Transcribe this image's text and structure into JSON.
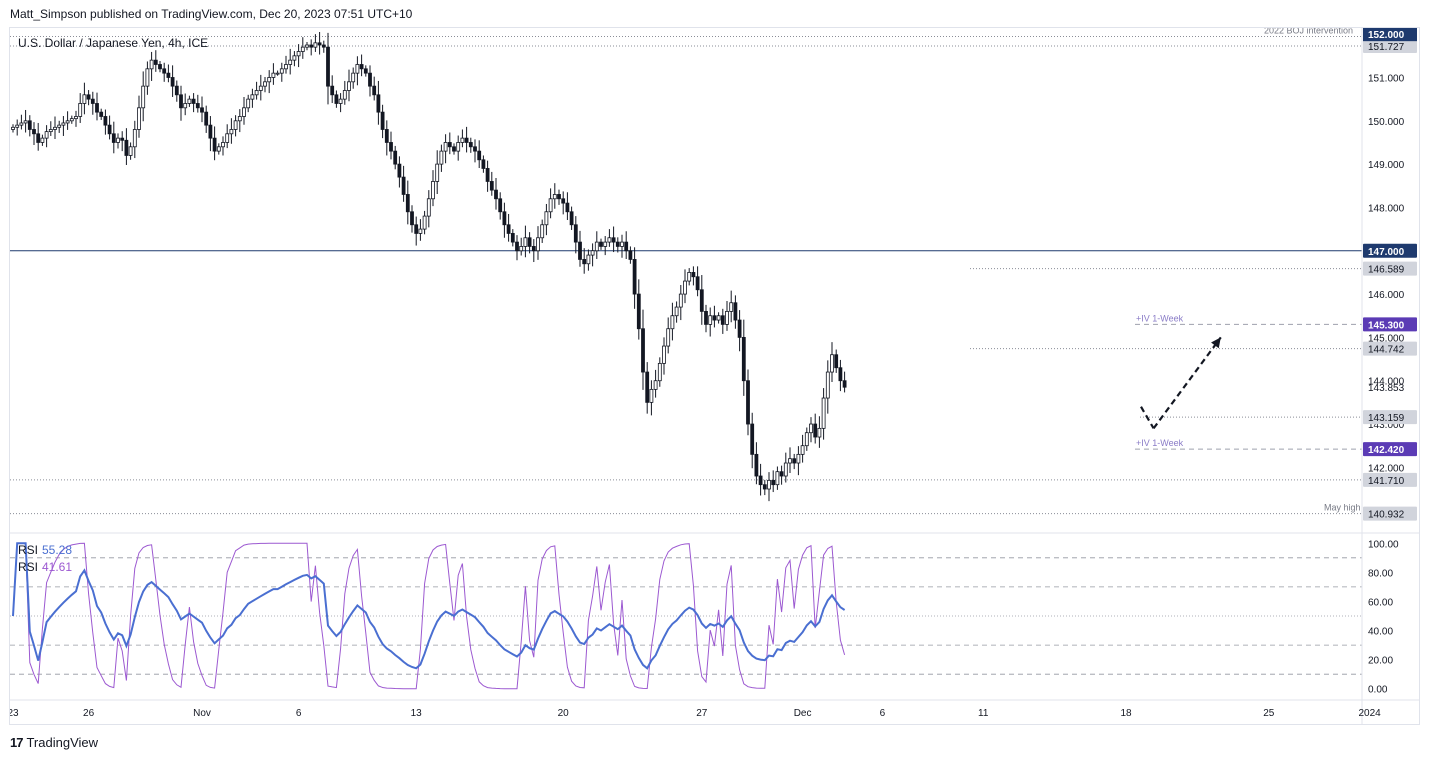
{
  "header": {
    "publisher": "Matt_Simpson published on TradingView.com, Dec 20, 2023 07:51 UTC+10"
  },
  "footer": {
    "logo_text": "17",
    "brand": "TradingView"
  },
  "colors": {
    "candle_body": "#131722",
    "price_line": "#1e3a6e",
    "rsi_fast": "#9c59d1",
    "rsi_slow": "#4a6fd1",
    "label_dark": "#1e3a6e",
    "label_purple": "#5b3bb5",
    "label_gray": "#787b86",
    "axis_text": "#131722"
  },
  "chart_data": [
    {
      "type": "candlestick",
      "title": "U.S. Dollar / Japanese Yen, 4h, ICE",
      "ylim": [
        140.6,
        152.05
      ],
      "y_ticks": [
        "152.000",
        "151.000",
        "150.000",
        "149.000",
        "148.000",
        "147.000",
        "146.000",
        "145.000",
        "144.000",
        "143.000",
        "142.000"
      ],
      "x_tick_labels": [
        "23",
        "26",
        "Nov",
        "6",
        "13",
        "20",
        "27",
        "Dec",
        "6",
        "11",
        "18",
        "25",
        "2024"
      ],
      "x_tick_bar_index": [
        0,
        18,
        45,
        68,
        96,
        131,
        164,
        188,
        207,
        231,
        265,
        299,
        323
      ],
      "levels": [
        {
          "price": 151.945,
          "label": "151.945",
          "style": "dotted",
          "annotation": "2022 BOJ intervention"
        },
        {
          "price": 151.727,
          "label": "151.727",
          "style": "dotted",
          "annotation": ""
        },
        {
          "price": 147.0,
          "label": "147.000",
          "style": "solid",
          "annotation": ""
        },
        {
          "price": 146.589,
          "label": "146.589",
          "style": "dotted",
          "annotation": ""
        },
        {
          "price": 145.3,
          "label": "145.300",
          "style": "dashed",
          "annotation": "+IV 1-Week"
        },
        {
          "price": 144.742,
          "label": "144.742",
          "style": "dotted",
          "annotation": ""
        },
        {
          "price": 143.159,
          "label": "143.159",
          "style": "dotted",
          "annotation": ""
        },
        {
          "price": 142.42,
          "label": "142.420",
          "style": "dashed",
          "annotation": "+IV 1-Week"
        },
        {
          "price": 141.71,
          "label": "141.710",
          "style": "dotted",
          "annotation": ""
        },
        {
          "price": 140.932,
          "label": "140.932",
          "style": "dotted",
          "annotation": "May high"
        }
      ],
      "last_price": "143.853",
      "top_label": "152.000",
      "closes": [
        149.85,
        149.9,
        149.95,
        150.0,
        149.8,
        149.7,
        149.5,
        149.6,
        149.75,
        149.8,
        149.85,
        149.9,
        149.95,
        150.0,
        150.05,
        150.1,
        150.4,
        150.6,
        150.5,
        150.4,
        150.2,
        150.1,
        149.9,
        149.7,
        149.5,
        149.6,
        149.55,
        149.2,
        149.4,
        149.8,
        150.3,
        150.8,
        151.2,
        151.4,
        151.3,
        151.2,
        151.1,
        151.0,
        150.8,
        150.6,
        150.3,
        150.4,
        150.5,
        150.4,
        150.3,
        150.2,
        149.9,
        149.6,
        149.3,
        149.4,
        149.5,
        149.7,
        149.8,
        150.0,
        150.1,
        150.3,
        150.5,
        150.6,
        150.7,
        150.8,
        150.9,
        151.0,
        151.1,
        151.1,
        151.2,
        151.3,
        151.4,
        151.5,
        151.6,
        151.7,
        151.75,
        151.7,
        151.8,
        151.75,
        151.7,
        150.8,
        150.6,
        150.4,
        150.5,
        150.7,
        150.9,
        151.1,
        151.3,
        151.2,
        151.1,
        150.8,
        150.6,
        150.2,
        149.8,
        149.5,
        149.3,
        149.0,
        148.7,
        148.3,
        147.9,
        147.6,
        147.4,
        147.5,
        147.8,
        148.2,
        148.6,
        149.0,
        149.3,
        149.5,
        149.4,
        149.3,
        149.5,
        149.6,
        149.5,
        149.4,
        149.3,
        149.1,
        148.9,
        148.6,
        148.4,
        148.2,
        147.9,
        147.6,
        147.4,
        147.2,
        147.0,
        147.1,
        147.3,
        147.1,
        147.0,
        147.3,
        147.6,
        147.9,
        148.2,
        148.3,
        148.2,
        148.1,
        147.9,
        147.6,
        147.2,
        146.8,
        146.7,
        146.9,
        147.0,
        147.2,
        147.1,
        147.2,
        147.3,
        147.2,
        147.1,
        147.2,
        147.0,
        146.8,
        146.0,
        145.2,
        144.2,
        143.5,
        143.8,
        144.0,
        144.4,
        144.8,
        145.2,
        145.5,
        145.7,
        146.0,
        146.3,
        146.5,
        146.4,
        146.1,
        145.6,
        145.3,
        145.5,
        145.4,
        145.5,
        145.3,
        145.6,
        145.8,
        145.4,
        145.0,
        144.0,
        143.0,
        142.3,
        141.8,
        141.6,
        141.5,
        141.7,
        141.6,
        141.9,
        141.8,
        142.1,
        142.2,
        142.1,
        142.3,
        142.5,
        142.8,
        143.0,
        142.7,
        142.9,
        143.6,
        144.2,
        144.6,
        144.3,
        144.0,
        143.85
      ],
      "annotation_arrow": {
        "points": [
          [
            140,
            143.4
          ],
          [
            143,
            142.9
          ],
          [
            159,
            145.0
          ]
        ],
        "style": "dashed",
        "head": "end"
      }
    },
    {
      "type": "line",
      "title": "RSI",
      "ylim": [
        -5,
        105
      ],
      "y_ticks": [
        "100.00",
        "80.00",
        "60.00",
        "40.00",
        "20.00",
        "0.00"
      ],
      "levels": [
        90,
        70,
        50,
        30,
        10
      ],
      "series": [
        {
          "name": "RSI",
          "value_label": "55.28",
          "color": "#4a6fd1"
        },
        {
          "name": "RSI",
          "value_label": "41.61",
          "color": "#9c59d1"
        }
      ]
    }
  ]
}
